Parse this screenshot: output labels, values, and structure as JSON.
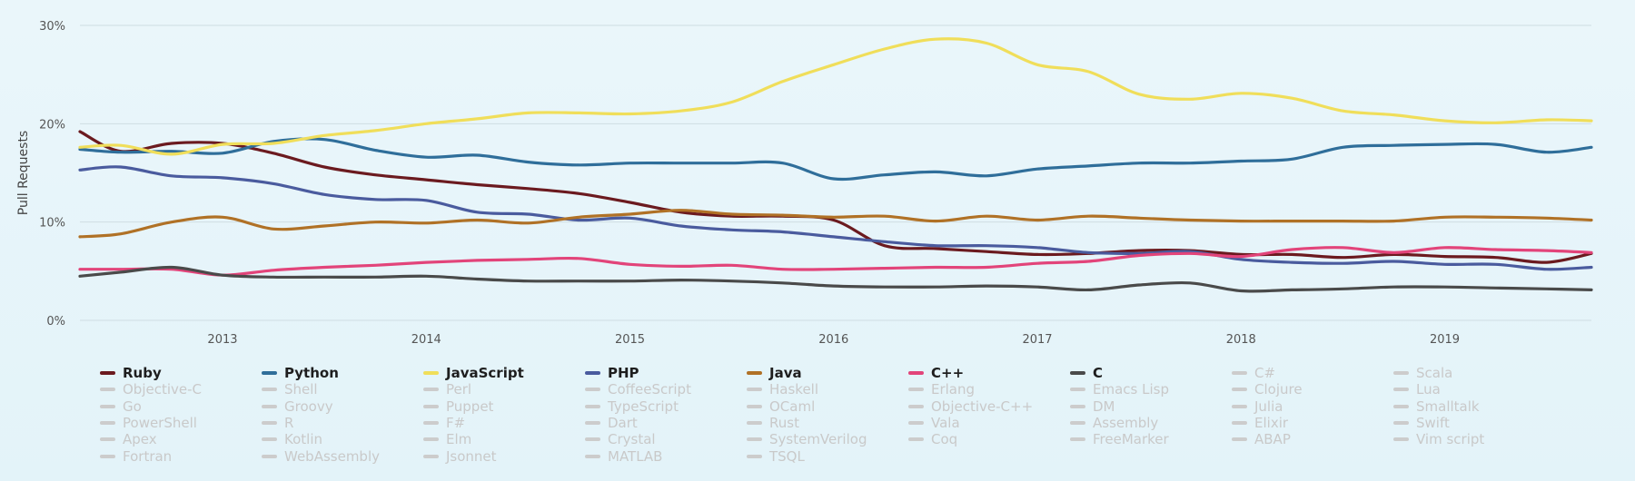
{
  "chart_data": {
    "type": "line",
    "title": "",
    "xlabel": "",
    "ylabel": "Pull Requests",
    "ylim": [
      0,
      30
    ],
    "xlim": [
      2012.3,
      2019.72
    ],
    "y_ticks": [
      0,
      10,
      20,
      30
    ],
    "y_tick_labels": [
      "0%",
      "10%",
      "20%",
      "30%"
    ],
    "x_ticks": [
      2013,
      2014,
      2015,
      2016,
      2017,
      2018,
      2019
    ],
    "x_tick_labels": [
      "2013",
      "2014",
      "2015",
      "2016",
      "2017",
      "2018",
      "2019"
    ],
    "grid": true,
    "legend_placement": "bottom",
    "series": [
      {
        "name": "Ruby",
        "color": "#6b1a1f",
        "x": [
          2012.3,
          2012.5,
          2012.75,
          2013.0,
          2013.25,
          2013.5,
          2013.75,
          2014.0,
          2014.25,
          2014.5,
          2014.75,
          2015.0,
          2015.25,
          2015.5,
          2015.75,
          2016.0,
          2016.25,
          2016.5,
          2016.75,
          2017.0,
          2017.25,
          2017.5,
          2017.75,
          2018.0,
          2018.25,
          2018.5,
          2018.75,
          2019.0,
          2019.25,
          2019.5,
          2019.72
        ],
        "values": [
          19.2,
          17.2,
          18.0,
          18.0,
          17.0,
          15.6,
          14.8,
          14.3,
          13.8,
          13.4,
          12.9,
          12.0,
          11.0,
          10.6,
          10.6,
          10.2,
          7.6,
          7.3,
          7.0,
          6.7,
          6.8,
          7.1,
          7.1,
          6.7,
          6.7,
          6.4,
          6.7,
          6.5,
          6.4,
          5.9,
          6.8
        ]
      },
      {
        "name": "Python",
        "color": "#2f6e9a",
        "x": [
          2012.3,
          2012.5,
          2012.75,
          2013.0,
          2013.25,
          2013.5,
          2013.75,
          2014.0,
          2014.25,
          2014.5,
          2014.75,
          2015.0,
          2015.25,
          2015.5,
          2015.75,
          2016.0,
          2016.25,
          2016.5,
          2016.75,
          2017.0,
          2017.25,
          2017.5,
          2017.75,
          2018.0,
          2018.25,
          2018.5,
          2018.75,
          2019.0,
          2019.25,
          2019.5,
          2019.72
        ],
        "values": [
          17.4,
          17.1,
          17.2,
          17.0,
          18.2,
          18.4,
          17.3,
          16.6,
          16.8,
          16.1,
          15.8,
          16.0,
          16.0,
          16.0,
          16.0,
          14.4,
          14.8,
          15.1,
          14.7,
          15.4,
          15.7,
          16.0,
          16.0,
          16.2,
          16.4,
          17.6,
          17.8,
          17.9,
          17.9,
          17.1,
          17.6
        ]
      },
      {
        "name": "JavaScript",
        "color": "#f0de5a",
        "x": [
          2012.3,
          2012.5,
          2012.75,
          2013.0,
          2013.25,
          2013.5,
          2013.75,
          2014.0,
          2014.25,
          2014.5,
          2014.75,
          2015.0,
          2015.25,
          2015.5,
          2015.75,
          2016.0,
          2016.25,
          2016.5,
          2016.75,
          2017.0,
          2017.25,
          2017.5,
          2017.75,
          2018.0,
          2018.25,
          2018.5,
          2018.75,
          2019.0,
          2019.25,
          2019.5,
          2019.72
        ],
        "values": [
          17.6,
          17.8,
          16.9,
          17.9,
          18.0,
          18.8,
          19.3,
          20.0,
          20.5,
          21.1,
          21.1,
          21.0,
          21.3,
          22.2,
          24.3,
          26.0,
          27.6,
          28.6,
          28.2,
          26.0,
          25.3,
          23.0,
          22.5,
          23.1,
          22.6,
          21.3,
          20.9,
          20.3,
          20.1,
          20.4,
          20.3
        ]
      },
      {
        "name": "PHP",
        "color": "#4a5b9e",
        "x": [
          2012.3,
          2012.5,
          2012.75,
          2013.0,
          2013.25,
          2013.5,
          2013.75,
          2014.0,
          2014.25,
          2014.5,
          2014.75,
          2015.0,
          2015.25,
          2015.5,
          2015.75,
          2016.0,
          2016.25,
          2016.5,
          2016.75,
          2017.0,
          2017.25,
          2017.5,
          2017.75,
          2018.0,
          2018.25,
          2018.5,
          2018.75,
          2019.0,
          2019.25,
          2019.5,
          2019.72
        ],
        "values": [
          15.3,
          15.6,
          14.7,
          14.5,
          13.9,
          12.8,
          12.3,
          12.2,
          11.0,
          10.8,
          10.2,
          10.4,
          9.6,
          9.2,
          9.0,
          8.5,
          8.0,
          7.6,
          7.6,
          7.4,
          6.9,
          6.8,
          7.0,
          6.2,
          5.9,
          5.8,
          6.0,
          5.7,
          5.7,
          5.2,
          5.4
        ]
      },
      {
        "name": "Java",
        "color": "#b07126",
        "x": [
          2012.3,
          2012.5,
          2012.75,
          2013.0,
          2013.25,
          2013.5,
          2013.75,
          2014.0,
          2014.25,
          2014.5,
          2014.75,
          2015.0,
          2015.25,
          2015.5,
          2015.75,
          2016.0,
          2016.25,
          2016.5,
          2016.75,
          2017.0,
          2017.25,
          2017.5,
          2017.75,
          2018.0,
          2018.25,
          2018.5,
          2018.75,
          2019.0,
          2019.25,
          2019.5,
          2019.72
        ],
        "values": [
          8.5,
          8.8,
          10.0,
          10.5,
          9.3,
          9.6,
          10.0,
          9.9,
          10.2,
          9.9,
          10.5,
          10.8,
          11.2,
          10.8,
          10.7,
          10.5,
          10.6,
          10.1,
          10.6,
          10.2,
          10.6,
          10.4,
          10.2,
          10.1,
          10.1,
          10.1,
          10.1,
          10.5,
          10.5,
          10.4,
          10.2
        ]
      },
      {
        "name": "C++",
        "color": "#e2447a",
        "x": [
          2012.3,
          2012.5,
          2012.75,
          2013.0,
          2013.25,
          2013.5,
          2013.75,
          2014.0,
          2014.25,
          2014.5,
          2014.75,
          2015.0,
          2015.25,
          2015.5,
          2015.75,
          2016.0,
          2016.25,
          2016.5,
          2016.75,
          2017.0,
          2017.25,
          2017.5,
          2017.75,
          2018.0,
          2018.25,
          2018.5,
          2018.75,
          2019.0,
          2019.25,
          2019.5,
          2019.72
        ],
        "values": [
          5.2,
          5.2,
          5.2,
          4.6,
          5.1,
          5.4,
          5.6,
          5.9,
          6.1,
          6.2,
          6.3,
          5.7,
          5.5,
          5.6,
          5.2,
          5.2,
          5.3,
          5.4,
          5.4,
          5.8,
          6.0,
          6.6,
          6.8,
          6.5,
          7.2,
          7.4,
          6.9,
          7.4,
          7.2,
          7.1,
          6.9
        ]
      },
      {
        "name": "C",
        "color": "#4a4a4a",
        "x": [
          2012.3,
          2012.5,
          2012.75,
          2013.0,
          2013.25,
          2013.5,
          2013.75,
          2014.0,
          2014.25,
          2014.5,
          2014.75,
          2015.0,
          2015.25,
          2015.5,
          2015.75,
          2016.0,
          2016.25,
          2016.5,
          2016.75,
          2017.0,
          2017.25,
          2017.5,
          2017.75,
          2018.0,
          2018.25,
          2018.5,
          2018.75,
          2019.0,
          2019.25,
          2019.5,
          2019.72
        ],
        "values": [
          4.5,
          4.9,
          5.4,
          4.6,
          4.4,
          4.4,
          4.4,
          4.5,
          4.2,
          4.0,
          4.0,
          4.0,
          4.1,
          4.0,
          3.8,
          3.5,
          3.4,
          3.4,
          3.5,
          3.4,
          3.1,
          3.6,
          3.8,
          3.0,
          3.1,
          3.2,
          3.4,
          3.4,
          3.3,
          3.2,
          3.1
        ]
      }
    ],
    "legend": [
      {
        "name": "Ruby",
        "color": "#6b1a1f",
        "active": true
      },
      {
        "name": "Python",
        "color": "#2f6e9a",
        "active": true
      },
      {
        "name": "JavaScript",
        "color": "#f0de5a",
        "active": true
      },
      {
        "name": "PHP",
        "color": "#4a5b9e",
        "active": true
      },
      {
        "name": "Java",
        "color": "#b07126",
        "active": true
      },
      {
        "name": "C++",
        "color": "#e2447a",
        "active": true
      },
      {
        "name": "C",
        "color": "#4a4a4a",
        "active": true
      },
      {
        "name": "C#",
        "color": "#cccccc",
        "active": false
      },
      {
        "name": "Scala",
        "color": "#cccccc",
        "active": false
      },
      {
        "name": "Objective-C",
        "color": "#cccccc",
        "active": false
      },
      {
        "name": "Shell",
        "color": "#cccccc",
        "active": false
      },
      {
        "name": "Perl",
        "color": "#cccccc",
        "active": false
      },
      {
        "name": "CoffeeScript",
        "color": "#cccccc",
        "active": false
      },
      {
        "name": "Haskell",
        "color": "#cccccc",
        "active": false
      },
      {
        "name": "Erlang",
        "color": "#cccccc",
        "active": false
      },
      {
        "name": "Emacs Lisp",
        "color": "#cccccc",
        "active": false
      },
      {
        "name": "Clojure",
        "color": "#cccccc",
        "active": false
      },
      {
        "name": "Lua",
        "color": "#cccccc",
        "active": false
      },
      {
        "name": "Go",
        "color": "#cccccc",
        "active": false
      },
      {
        "name": "Groovy",
        "color": "#cccccc",
        "active": false
      },
      {
        "name": "Puppet",
        "color": "#cccccc",
        "active": false
      },
      {
        "name": "TypeScript",
        "color": "#cccccc",
        "active": false
      },
      {
        "name": "OCaml",
        "color": "#cccccc",
        "active": false
      },
      {
        "name": "Objective-C++",
        "color": "#cccccc",
        "active": false
      },
      {
        "name": "DM",
        "color": "#cccccc",
        "active": false
      },
      {
        "name": "Julia",
        "color": "#cccccc",
        "active": false
      },
      {
        "name": "Smalltalk",
        "color": "#cccccc",
        "active": false
      },
      {
        "name": "PowerShell",
        "color": "#cccccc",
        "active": false
      },
      {
        "name": "R",
        "color": "#cccccc",
        "active": false
      },
      {
        "name": "F#",
        "color": "#cccccc",
        "active": false
      },
      {
        "name": "Dart",
        "color": "#cccccc",
        "active": false
      },
      {
        "name": "Rust",
        "color": "#cccccc",
        "active": false
      },
      {
        "name": "Vala",
        "color": "#cccccc",
        "active": false
      },
      {
        "name": "Assembly",
        "color": "#cccccc",
        "active": false
      },
      {
        "name": "Elixir",
        "color": "#cccccc",
        "active": false
      },
      {
        "name": "Swift",
        "color": "#cccccc",
        "active": false
      },
      {
        "name": "Apex",
        "color": "#cccccc",
        "active": false
      },
      {
        "name": "Kotlin",
        "color": "#cccccc",
        "active": false
      },
      {
        "name": "Elm",
        "color": "#cccccc",
        "active": false
      },
      {
        "name": "Crystal",
        "color": "#cccccc",
        "active": false
      },
      {
        "name": "SystemVerilog",
        "color": "#cccccc",
        "active": false
      },
      {
        "name": "Coq",
        "color": "#cccccc",
        "active": false
      },
      {
        "name": "FreeMarker",
        "color": "#cccccc",
        "active": false
      },
      {
        "name": "ABAP",
        "color": "#cccccc",
        "active": false
      },
      {
        "name": "Vim script",
        "color": "#cccccc",
        "active": false
      },
      {
        "name": "Fortran",
        "color": "#cccccc",
        "active": false
      },
      {
        "name": "WebAssembly",
        "color": "#cccccc",
        "active": false
      },
      {
        "name": "Jsonnet",
        "color": "#cccccc",
        "active": false
      },
      {
        "name": "MATLAB",
        "color": "#cccccc",
        "active": false
      },
      {
        "name": "TSQL",
        "color": "#cccccc",
        "active": false
      }
    ]
  }
}
